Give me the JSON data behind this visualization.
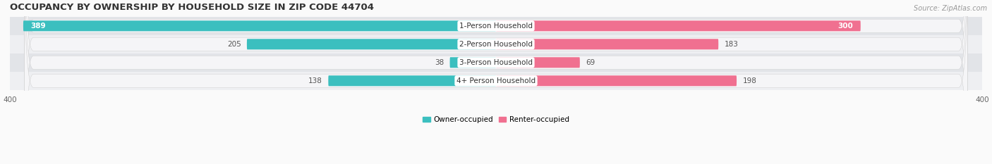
{
  "title": "OCCUPANCY BY OWNERSHIP BY HOUSEHOLD SIZE IN ZIP CODE 44704",
  "source": "Source: ZipAtlas.com",
  "categories": [
    "1-Person Household",
    "2-Person Household",
    "3-Person Household",
    "4+ Person Household"
  ],
  "owner_values": [
    389,
    205,
    38,
    138
  ],
  "renter_values": [
    300,
    183,
    69,
    198
  ],
  "owner_color": "#3BBFBF",
  "renter_color": "#F07090",
  "row_bg_colors": [
    "#E2E4E8",
    "#EEEFF2",
    "#E2E4E8",
    "#EEEFF2"
  ],
  "track_color": "#F5F5F7",
  "axis_max": 400,
  "legend_owner": "Owner-occupied",
  "legend_renter": "Renter-occupied",
  "title_fontsize": 9.5,
  "label_fontsize": 7.5,
  "value_fontsize": 7.5,
  "tick_fontsize": 7.5,
  "source_fontsize": 7,
  "figsize": [
    14.06,
    2.33
  ],
  "dpi": 100
}
